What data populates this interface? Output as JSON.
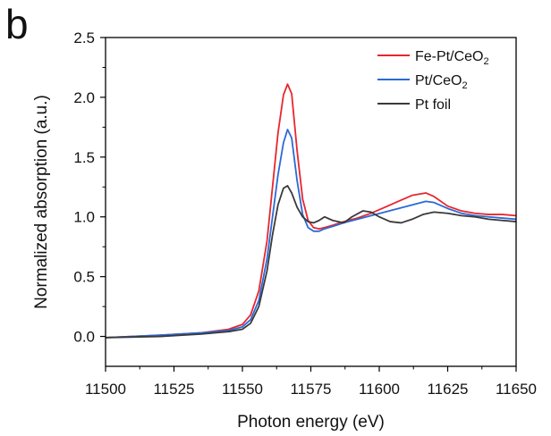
{
  "chart_data": {
    "type": "line",
    "panel_label": "b",
    "xlabel": "Photon energy (eV)",
    "ylabel": "Normalized absorption (a.u.)",
    "xlim": [
      11500,
      11650
    ],
    "ylim": [
      -0.25,
      2.5
    ],
    "xticks": [
      11500,
      11525,
      11550,
      11575,
      11600,
      11625,
      11650
    ],
    "yticks": [
      0.0,
      0.5,
      1.0,
      1.5,
      2.0,
      2.5
    ],
    "ytick_labels": [
      "0.0",
      "0.5",
      "1.0",
      "1.5",
      "2.0",
      "2.5"
    ],
    "grid": false,
    "legend_position": "top-right",
    "series": [
      {
        "name": "Fe-Pt/CeO2",
        "name_base": "Fe-Pt/CeO",
        "name_sub": "2",
        "color": "#e8262e",
        "x": [
          11500,
          11520,
          11535,
          11545,
          11550,
          11553,
          11556,
          11559,
          11561,
          11563,
          11565,
          11566.5,
          11568,
          11570,
          11572,
          11574,
          11576,
          11578,
          11580,
          11583,
          11587,
          11592,
          11597,
          11602,
          11607,
          11612,
          11617,
          11620,
          11625,
          11630,
          11635,
          11640,
          11645,
          11650
        ],
        "y": [
          -0.01,
          0.01,
          0.03,
          0.06,
          0.1,
          0.18,
          0.38,
          0.8,
          1.25,
          1.7,
          2.02,
          2.11,
          2.03,
          1.55,
          1.15,
          0.97,
          0.91,
          0.9,
          0.91,
          0.93,
          0.96,
          0.99,
          1.03,
          1.08,
          1.13,
          1.18,
          1.2,
          1.17,
          1.09,
          1.05,
          1.03,
          1.02,
          1.02,
          1.01
        ]
      },
      {
        "name": "Pt/CeO2",
        "name_base": "Pt/CeO",
        "name_sub": "2",
        "color": "#2a6ad6",
        "x": [
          11500,
          11520,
          11535,
          11545,
          11550,
          11553,
          11556,
          11559,
          11561,
          11563,
          11565,
          11566.5,
          11568,
          11570,
          11572,
          11574,
          11576,
          11578,
          11580,
          11583,
          11587,
          11592,
          11597,
          11602,
          11607,
          11612,
          11617,
          11620,
          11625,
          11630,
          11635,
          11640,
          11645,
          11650
        ],
        "y": [
          -0.01,
          0.01,
          0.03,
          0.05,
          0.08,
          0.14,
          0.3,
          0.65,
          1.0,
          1.35,
          1.62,
          1.73,
          1.66,
          1.3,
          1.02,
          0.91,
          0.88,
          0.88,
          0.9,
          0.92,
          0.95,
          0.98,
          1.01,
          1.04,
          1.07,
          1.1,
          1.13,
          1.12,
          1.07,
          1.03,
          1.01,
          1.0,
          0.99,
          0.98
        ]
      },
      {
        "name": "Pt foil",
        "color": "#3a3a3a",
        "x": [
          11500,
          11520,
          11535,
          11545,
          11550,
          11553,
          11556,
          11559,
          11561,
          11563,
          11565,
          11566.5,
          11568,
          11570,
          11572,
          11574,
          11576,
          11578,
          11580,
          11583,
          11587,
          11590,
          11594,
          11597,
          11600,
          11604,
          11608,
          11612,
          11616,
          11620,
          11625,
          11630,
          11635,
          11640,
          11645,
          11650
        ],
        "y": [
          -0.01,
          0.0,
          0.02,
          0.04,
          0.06,
          0.11,
          0.25,
          0.55,
          0.85,
          1.1,
          1.24,
          1.26,
          1.2,
          1.08,
          1.0,
          0.96,
          0.95,
          0.97,
          1.0,
          0.97,
          0.95,
          1.0,
          1.05,
          1.04,
          1.0,
          0.96,
          0.95,
          0.98,
          1.02,
          1.04,
          1.03,
          1.01,
          1.0,
          0.98,
          0.97,
          0.96
        ]
      }
    ]
  }
}
